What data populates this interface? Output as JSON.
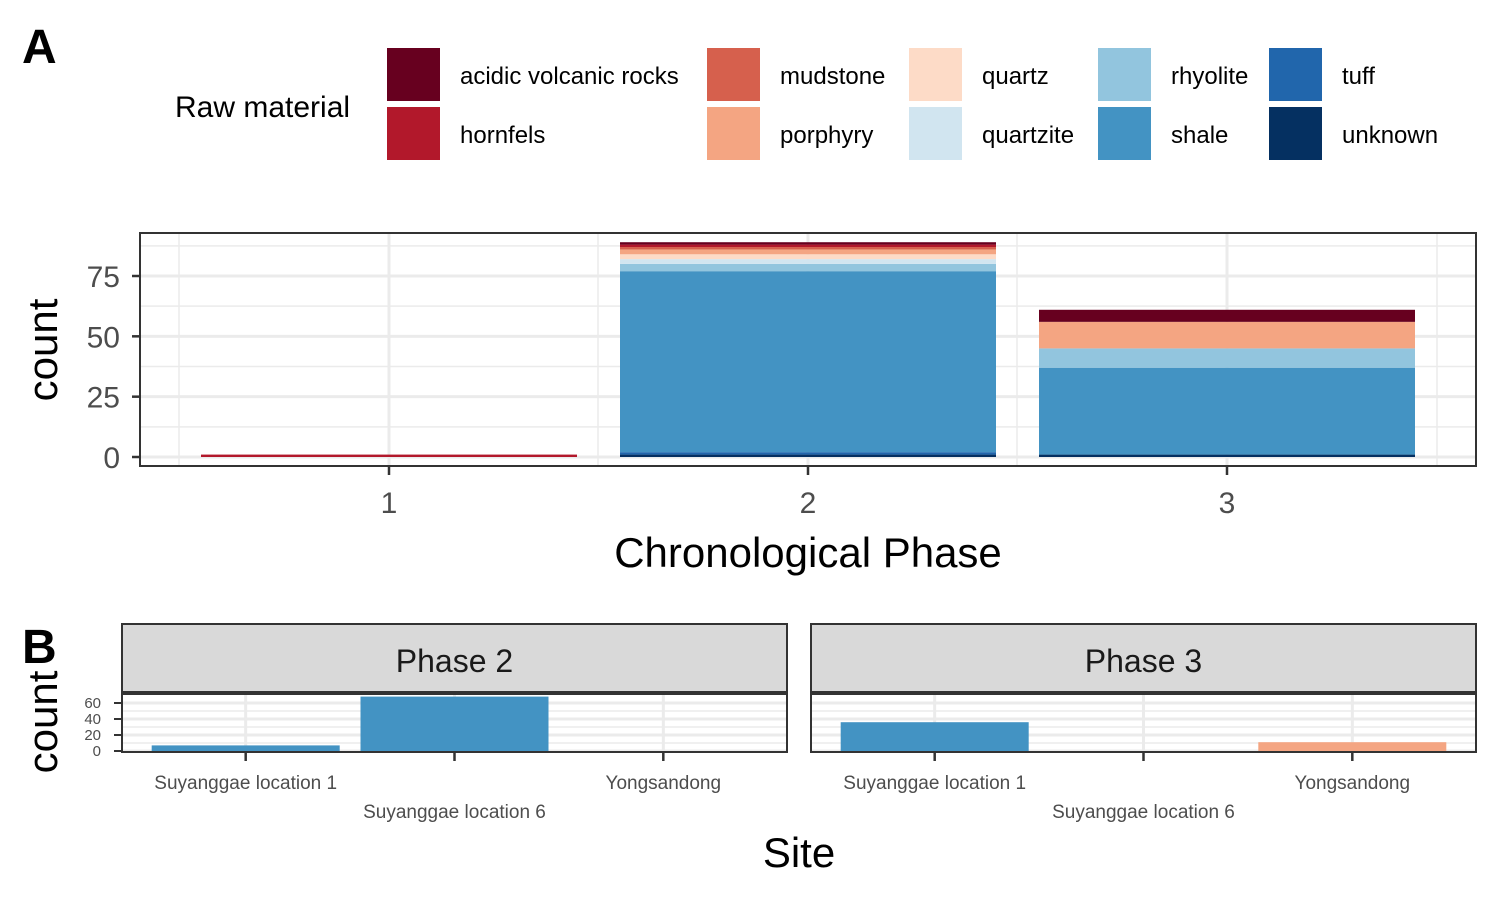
{
  "panel_labels": {
    "a": "A",
    "b": "B"
  },
  "legend": {
    "title": "Raw material",
    "items": [
      {
        "label": "acidic volcanic rocks",
        "color": "#67001f"
      },
      {
        "label": "hornfels",
        "color": "#b2182b"
      },
      {
        "label": "mudstone",
        "color": "#d6604d"
      },
      {
        "label": "porphyry",
        "color": "#f4a582"
      },
      {
        "label": "quartz",
        "color": "#fddbc7"
      },
      {
        "label": "quartzite",
        "color": "#d1e5f0"
      },
      {
        "label": "rhyolite",
        "color": "#92c5de"
      },
      {
        "label": "shale",
        "color": "#4393c3"
      },
      {
        "label": "tuff",
        "color": "#2166ac"
      },
      {
        "label": "unknown",
        "color": "#053061"
      }
    ]
  },
  "chart_data": [
    {
      "type": "bar",
      "stacked": true,
      "categories": [
        "1",
        "2",
        "3"
      ],
      "xlabel": "Chronological Phase",
      "ylabel": "count",
      "ylim": [
        0,
        90
      ],
      "yticks": [
        0,
        25,
        50,
        75
      ],
      "grid": true,
      "legend_position": "top",
      "series": [
        {
          "name": "acidic volcanic rocks",
          "values": [
            0,
            1,
            5
          ]
        },
        {
          "name": "hornfels",
          "values": [
            1,
            1,
            0
          ]
        },
        {
          "name": "mudstone",
          "values": [
            0,
            1,
            0
          ]
        },
        {
          "name": "porphyry",
          "values": [
            0,
            2,
            11
          ]
        },
        {
          "name": "quartz",
          "values": [
            0,
            2,
            0
          ]
        },
        {
          "name": "quartzite",
          "values": [
            0,
            2,
            0
          ]
        },
        {
          "name": "rhyolite",
          "values": [
            0,
            3,
            8
          ]
        },
        {
          "name": "shale",
          "values": [
            0,
            75,
            36
          ]
        },
        {
          "name": "tuff",
          "values": [
            0,
            1,
            0
          ]
        },
        {
          "name": "unknown",
          "values": [
            0,
            1,
            1
          ]
        }
      ]
    },
    {
      "type": "bar",
      "facets": [
        "Phase 2",
        "Phase 3"
      ],
      "categories": [
        "Suyanggae location 1",
        "Suyanggae location 6",
        "Yongsandong"
      ],
      "xlabel": "Site",
      "ylabel": "count",
      "ylim": [
        0,
        70
      ],
      "yticks": [
        0,
        20,
        40,
        60
      ],
      "grid": true,
      "panels": [
        {
          "facet": "Phase 2",
          "bars": [
            {
              "site": "Suyanggae location 1",
              "value": 7,
              "material": "shale"
            },
            {
              "site": "Suyanggae location 6",
              "value": 68,
              "material": "shale"
            },
            {
              "site": "Yongsandong",
              "value": 0,
              "material": ""
            }
          ]
        },
        {
          "facet": "Phase 3",
          "bars": [
            {
              "site": "Suyanggae location 1",
              "value": 36,
              "material": "shale"
            },
            {
              "site": "Suyanggae location 6",
              "value": 0,
              "material": ""
            },
            {
              "site": "Yongsandong",
              "value": 11,
              "material": "porphyry"
            }
          ]
        }
      ]
    }
  ]
}
